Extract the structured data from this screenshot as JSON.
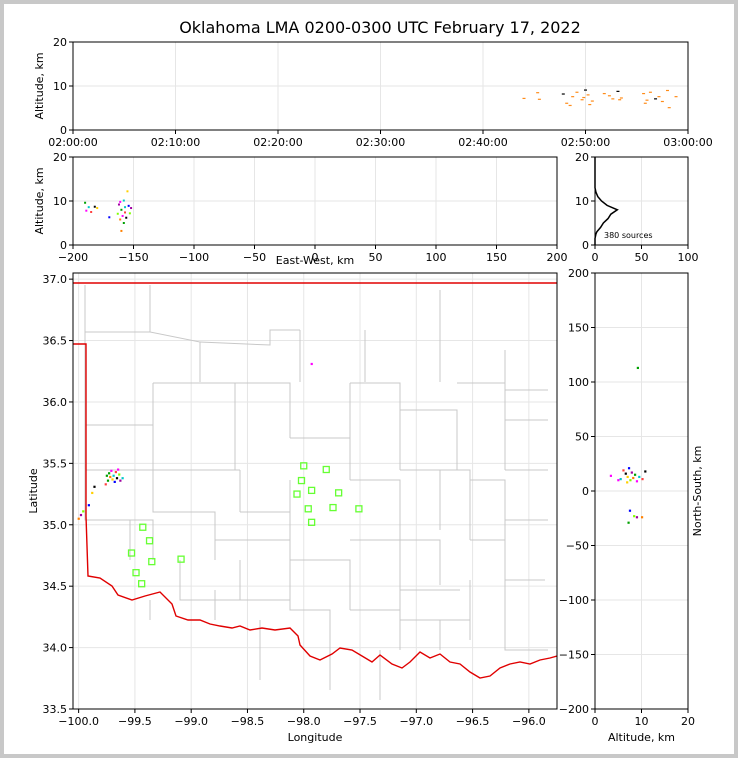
{
  "title": "Oklahoma LMA 0200-0300 UTC February 17, 2022",
  "chart_data": [
    {
      "panel": "time-height",
      "type": "scatter",
      "ylabel": "Altitude, km",
      "xlim": [
        "02:00:00",
        "03:00:00"
      ],
      "ylim": [
        0,
        20
      ],
      "x_ticks": [
        "02:00:00",
        "02:10:00",
        "02:20:00",
        "02:30:00",
        "02:40:00",
        "02:50:00",
        "03:00:00"
      ],
      "y_ticks": [
        "0",
        "10",
        "20"
      ],
      "grid": true,
      "points": [
        {
          "t": "02:44:00",
          "alt": 7.2
        },
        {
          "t": "02:45:20",
          "alt": 8.5
        },
        {
          "t": "02:45:30",
          "alt": 7.0
        },
        {
          "t": "02:47:50",
          "alt": 8.2
        },
        {
          "t": "02:48:10",
          "alt": 6.1
        },
        {
          "t": "02:48:30",
          "alt": 5.6
        },
        {
          "t": "02:48:45",
          "alt": 7.6
        },
        {
          "t": "02:49:10",
          "alt": 8.6
        },
        {
          "t": "02:49:40",
          "alt": 6.9
        },
        {
          "t": "02:49:50",
          "alt": 7.4
        },
        {
          "t": "02:50:00",
          "alt": 9.1
        },
        {
          "t": "02:50:15",
          "alt": 8.0
        },
        {
          "t": "02:50:25",
          "alt": 5.8
        },
        {
          "t": "02:50:40",
          "alt": 6.6
        },
        {
          "t": "02:51:50",
          "alt": 8.3
        },
        {
          "t": "02:52:20",
          "alt": 7.8
        },
        {
          "t": "02:52:40",
          "alt": 7.1
        },
        {
          "t": "02:53:10",
          "alt": 8.8
        },
        {
          "t": "02:53:20",
          "alt": 6.9
        },
        {
          "t": "02:53:30",
          "alt": 7.3
        },
        {
          "t": "02:55:40",
          "alt": 8.3
        },
        {
          "t": "02:55:50",
          "alt": 6.1
        },
        {
          "t": "02:56:00",
          "alt": 6.8
        },
        {
          "t": "02:56:20",
          "alt": 8.6
        },
        {
          "t": "02:56:50",
          "alt": 7.1
        },
        {
          "t": "02:57:10",
          "alt": 7.6
        },
        {
          "t": "02:57:30",
          "alt": 6.5
        },
        {
          "t": "02:58:00",
          "alt": 9.0
        },
        {
          "t": "02:58:10",
          "alt": 5.1
        },
        {
          "t": "02:58:50",
          "alt": 7.6
        }
      ]
    },
    {
      "panel": "east-west-altitude",
      "type": "scatter",
      "xlabel": "East-West, km",
      "ylabel": "Altitude, km",
      "xlim": [
        -200,
        200
      ],
      "ylim": [
        0,
        20
      ],
      "x_ticks": [
        "−200",
        "−150",
        "−100",
        "−50",
        "0",
        "50",
        "100",
        "150",
        "200"
      ],
      "y_ticks": [
        "0",
        "10",
        "20"
      ],
      "grid": true,
      "points": [
        {
          "x": -190,
          "alt": 9.6
        },
        {
          "x": -189,
          "alt": 7.8
        },
        {
          "x": -187,
          "alt": 8.6
        },
        {
          "x": -185,
          "alt": 7.5
        },
        {
          "x": -182,
          "alt": 8.7
        },
        {
          "x": -180,
          "alt": 8.4
        },
        {
          "x": -170,
          "alt": 6.3
        },
        {
          "x": -163,
          "alt": 7.1
        },
        {
          "x": -162,
          "alt": 9.2
        },
        {
          "x": -161,
          "alt": 5.8
        },
        {
          "x": -160,
          "alt": 8.0
        },
        {
          "x": -159,
          "alt": 6.6
        },
        {
          "x": -158,
          "alt": 10.1
        },
        {
          "x": -157,
          "alt": 7.4
        },
        {
          "x": -156,
          "alt": 6.2
        },
        {
          "x": -155,
          "alt": 12.2
        },
        {
          "x": -154,
          "alt": 8.9
        },
        {
          "x": -153,
          "alt": 7.2
        },
        {
          "x": -152,
          "alt": 8.4
        },
        {
          "x": -160,
          "alt": 3.2
        },
        {
          "x": -158,
          "alt": 5.0
        },
        {
          "x": -161,
          "alt": 9.8
        },
        {
          "x": -157,
          "alt": 8.6
        }
      ]
    },
    {
      "panel": "altitude-histogram",
      "type": "line",
      "xlim": [
        0,
        100
      ],
      "ylim": [
        0,
        20
      ],
      "x_ticks": [
        "0",
        "50",
        "100"
      ],
      "y_ticks": [
        "0",
        "10",
        "20"
      ],
      "annotation": "380 sources",
      "grid": true,
      "profile": [
        {
          "alt": 0.0,
          "count": 0
        },
        {
          "alt": 1.5,
          "count": 0
        },
        {
          "alt": 2.5,
          "count": 1
        },
        {
          "alt": 3.0,
          "count": 2
        },
        {
          "alt": 4.0,
          "count": 6
        },
        {
          "alt": 5.0,
          "count": 9
        },
        {
          "alt": 6.0,
          "count": 14
        },
        {
          "alt": 7.0,
          "count": 17
        },
        {
          "alt": 8.0,
          "count": 24
        },
        {
          "alt": 9.0,
          "count": 13
        },
        {
          "alt": 10.0,
          "count": 7
        },
        {
          "alt": 11.0,
          "count": 3
        },
        {
          "alt": 12.0,
          "count": 1
        },
        {
          "alt": 13.0,
          "count": 0
        },
        {
          "alt": 20.0,
          "count": 0
        }
      ]
    },
    {
      "panel": "plan-view",
      "type": "scatter",
      "xlabel": "Longitude",
      "ylabel": "Latitude",
      "xlim": [
        -100.05,
        -95.75
      ],
      "ylim": [
        33.5,
        37.05
      ],
      "x_ticks": [
        "−100.0",
        "−99.5",
        "−99.0",
        "−98.5",
        "−98.0",
        "−97.5",
        "−97.0",
        "−96.5",
        "−96.0"
      ],
      "y_ticks": [
        "33.5",
        "34.0",
        "34.5",
        "35.0",
        "35.5",
        "36.0",
        "36.5",
        "37.0"
      ],
      "grid": true,
      "stations": [
        {
          "lon": -98.0,
          "lat": 35.48
        },
        {
          "lon": -97.8,
          "lat": 35.45
        },
        {
          "lon": -98.02,
          "lat": 35.36
        },
        {
          "lon": -97.93,
          "lat": 35.28
        },
        {
          "lon": -98.06,
          "lat": 35.25
        },
        {
          "lon": -97.69,
          "lat": 35.26
        },
        {
          "lon": -97.96,
          "lat": 35.13
        },
        {
          "lon": -97.74,
          "lat": 35.14
        },
        {
          "lon": -97.51,
          "lat": 35.13
        },
        {
          "lon": -97.93,
          "lat": 35.02
        },
        {
          "lon": -99.43,
          "lat": 34.98
        },
        {
          "lon": -99.37,
          "lat": 34.87
        },
        {
          "lon": -99.53,
          "lat": 34.77
        },
        {
          "lon": -99.35,
          "lat": 34.7
        },
        {
          "lon": -99.09,
          "lat": 34.72
        },
        {
          "lon": -99.49,
          "lat": 34.61
        },
        {
          "lon": -99.44,
          "lat": 34.52
        }
      ],
      "sources": [
        {
          "lon": -99.73,
          "lat": 35.42
        },
        {
          "lon": -99.71,
          "lat": 35.44
        },
        {
          "lon": -99.69,
          "lat": 35.4
        },
        {
          "lon": -99.67,
          "lat": 35.43
        },
        {
          "lon": -99.66,
          "lat": 35.38
        },
        {
          "lon": -99.7,
          "lat": 35.37
        },
        {
          "lon": -99.68,
          "lat": 35.35
        },
        {
          "lon": -99.64,
          "lat": 35.41
        },
        {
          "lon": -99.63,
          "lat": 35.36
        },
        {
          "lon": -99.72,
          "lat": 35.39
        },
        {
          "lon": -99.74,
          "lat": 35.36
        },
        {
          "lon": -99.65,
          "lat": 35.45
        },
        {
          "lon": -99.61,
          "lat": 35.38
        },
        {
          "lon": -99.76,
          "lat": 35.33
        },
        {
          "lon": -99.86,
          "lat": 35.31
        },
        {
          "lon": -99.88,
          "lat": 35.26
        },
        {
          "lon": -99.91,
          "lat": 35.16
        },
        {
          "lon": -99.96,
          "lat": 35.11
        },
        {
          "lon": -99.98,
          "lat": 35.08
        },
        {
          "lon": -100.0,
          "lat": 35.05
        },
        {
          "lon": -99.75,
          "lat": 35.4
        },
        {
          "lon": -97.93,
          "lat": 36.31
        }
      ]
    },
    {
      "panel": "altitude-north-south",
      "type": "scatter",
      "xlabel": "Altitude, km",
      "ylabel": "North-South, km",
      "xlim": [
        0,
        20
      ],
      "ylim": [
        -200,
        200
      ],
      "x_ticks": [
        "0",
        "10",
        "20"
      ],
      "y_ticks": [
        "−200",
        "−150",
        "−100",
        "−50",
        "0",
        "50",
        "100",
        "150",
        "200"
      ],
      "grid": true,
      "points": [
        {
          "alt": 9.2,
          "ns": 113
        },
        {
          "alt": 3.4,
          "ns": 14
        },
        {
          "alt": 5.5,
          "ns": 11
        },
        {
          "alt": 6.1,
          "ns": 19
        },
        {
          "alt": 6.6,
          "ns": 16
        },
        {
          "alt": 7.0,
          "ns": 13
        },
        {
          "alt": 7.3,
          "ns": 21
        },
        {
          "alt": 7.6,
          "ns": 10
        },
        {
          "alt": 7.9,
          "ns": 17
        },
        {
          "alt": 8.2,
          "ns": 12
        },
        {
          "alt": 8.6,
          "ns": 15
        },
        {
          "alt": 9.0,
          "ns": 9
        },
        {
          "alt": 9.5,
          "ns": 13
        },
        {
          "alt": 10.2,
          "ns": 11
        },
        {
          "alt": 10.8,
          "ns": 18
        },
        {
          "alt": 6.9,
          "ns": 8
        },
        {
          "alt": 7.5,
          "ns": -18
        },
        {
          "alt": 8.4,
          "ns": -23
        },
        {
          "alt": 9.0,
          "ns": -24
        },
        {
          "alt": 10.1,
          "ns": -24
        },
        {
          "alt": 7.2,
          "ns": -29
        },
        {
          "alt": 5.0,
          "ns": 10
        }
      ]
    }
  ]
}
